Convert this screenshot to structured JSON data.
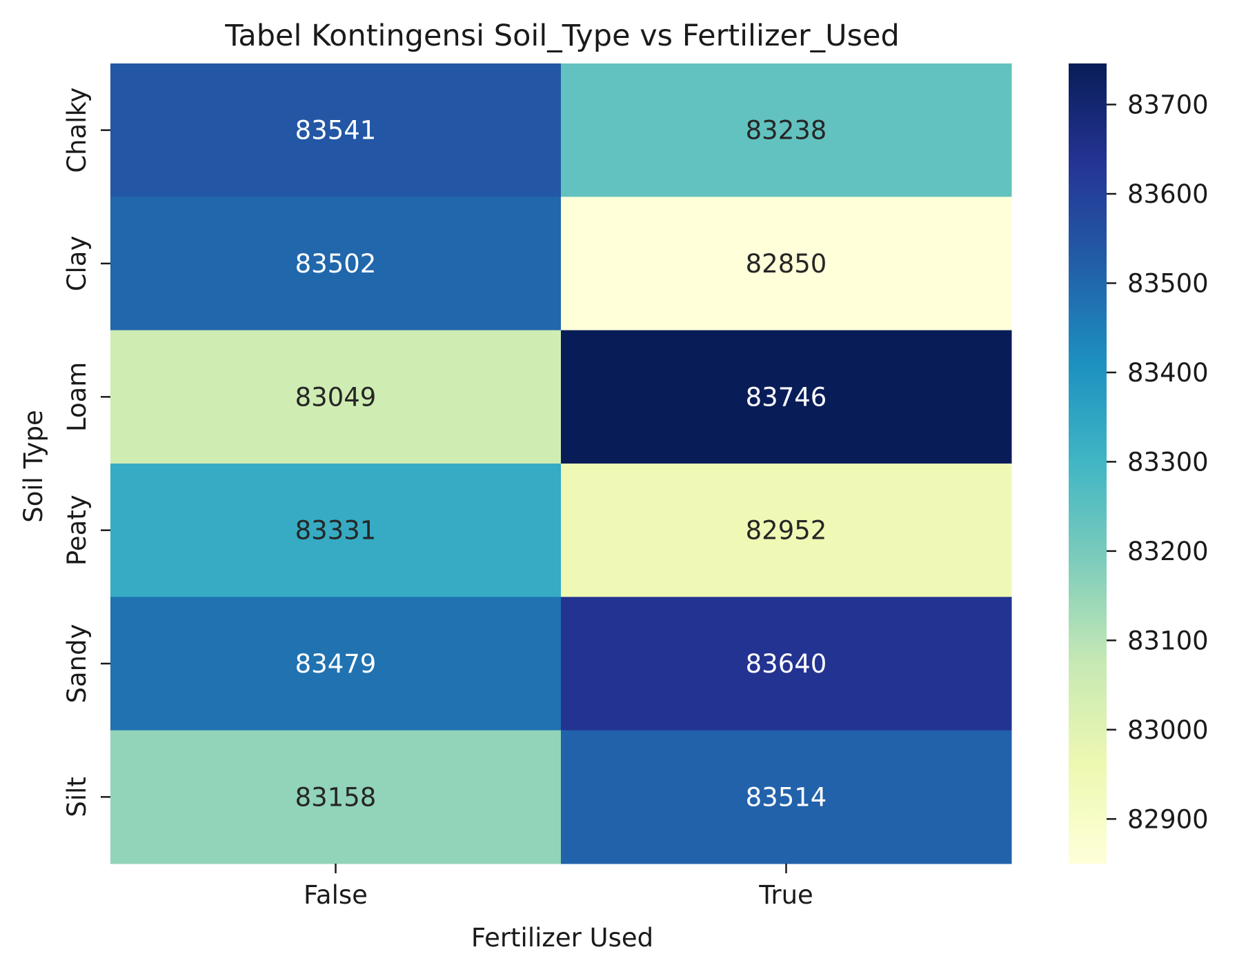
{
  "chart_data": {
    "type": "heatmap",
    "title": "Tabel Kontingensi Soil_Type vs Fertilizer_Used",
    "xlabel": "Fertilizer Used",
    "ylabel": "Soil Type",
    "x_categories": [
      "False",
      "True"
    ],
    "y_categories": [
      "Chalky",
      "Clay",
      "Loam",
      "Peaty",
      "Sandy",
      "Silt"
    ],
    "values": [
      [
        83541,
        83238
      ],
      [
        83502,
        82850
      ],
      [
        83049,
        83746
      ],
      [
        83331,
        82952
      ],
      [
        83479,
        83640
      ],
      [
        83158,
        83514
      ]
    ],
    "colorbar": {
      "min": 82850,
      "max": 83746,
      "ticks": [
        82900,
        83000,
        83100,
        83200,
        83300,
        83400,
        83500,
        83600,
        83700
      ],
      "colormap": "YlGnBu",
      "stops": [
        "#ffffd9",
        "#edf8b1",
        "#c7e9b4",
        "#7fcdbb",
        "#41b6c4",
        "#1d91c0",
        "#225ea8",
        "#253494",
        "#081d58"
      ]
    },
    "annotation_colors": {
      "dark": "#262626",
      "light": "#ffffff"
    }
  }
}
